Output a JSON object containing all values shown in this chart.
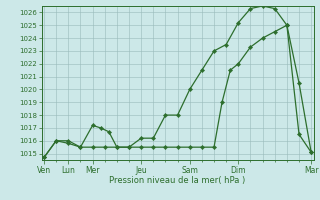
{
  "xlabel": "Pression niveau de la mer( hPa )",
  "background_color": "#cce8e8",
  "grid_color": "#99bbbb",
  "line_color": "#2d6e2d",
  "marker_color": "#2d6e2d",
  "ylim": [
    1014.5,
    1026.5
  ],
  "yticks": [
    1015,
    1016,
    1017,
    1018,
    1019,
    1020,
    1021,
    1022,
    1023,
    1024,
    1025,
    1026
  ],
  "xlim": [
    -0.1,
    11.1
  ],
  "day_pos": [
    0,
    1,
    2,
    4,
    6,
    8,
    11
  ],
  "day_labels": [
    "Ven",
    "Lun",
    "Mer",
    "Jeu",
    "Sam",
    "Dim",
    "Mar"
  ],
  "series1_x": [
    0,
    0.5,
    1.0,
    1.5,
    2.0,
    2.33,
    2.67,
    3.0,
    3.5,
    4.0,
    4.5,
    5.0,
    5.5,
    6.0,
    6.5,
    7.0,
    7.5,
    8.0,
    8.5,
    9.0,
    9.5,
    10.0,
    10.5,
    11.0
  ],
  "series1_y": [
    1014.7,
    1016.0,
    1015.8,
    1015.5,
    1017.2,
    1017.0,
    1016.7,
    1015.5,
    1015.5,
    1016.2,
    1016.2,
    1018.0,
    1018.0,
    1020.0,
    1021.5,
    1023.0,
    1023.5,
    1025.2,
    1026.3,
    1026.5,
    1026.3,
    1025.0,
    1020.5,
    1015.1
  ],
  "series2_x": [
    0,
    0.5,
    1.0,
    1.5,
    2.0,
    2.5,
    3.0,
    3.5,
    4.0,
    4.5,
    5.0,
    5.5,
    6.0,
    6.5,
    7.0,
    7.33,
    7.67,
    8.0,
    8.5,
    9.0,
    9.5,
    10.0,
    10.5,
    11.0
  ],
  "series2_y": [
    1014.7,
    1016.0,
    1016.0,
    1015.5,
    1015.5,
    1015.5,
    1015.5,
    1015.5,
    1015.5,
    1015.5,
    1015.5,
    1015.5,
    1015.5,
    1015.5,
    1015.5,
    1019.0,
    1021.5,
    1022.0,
    1023.3,
    1024.0,
    1024.5,
    1025.0,
    1016.5,
    1015.1
  ]
}
